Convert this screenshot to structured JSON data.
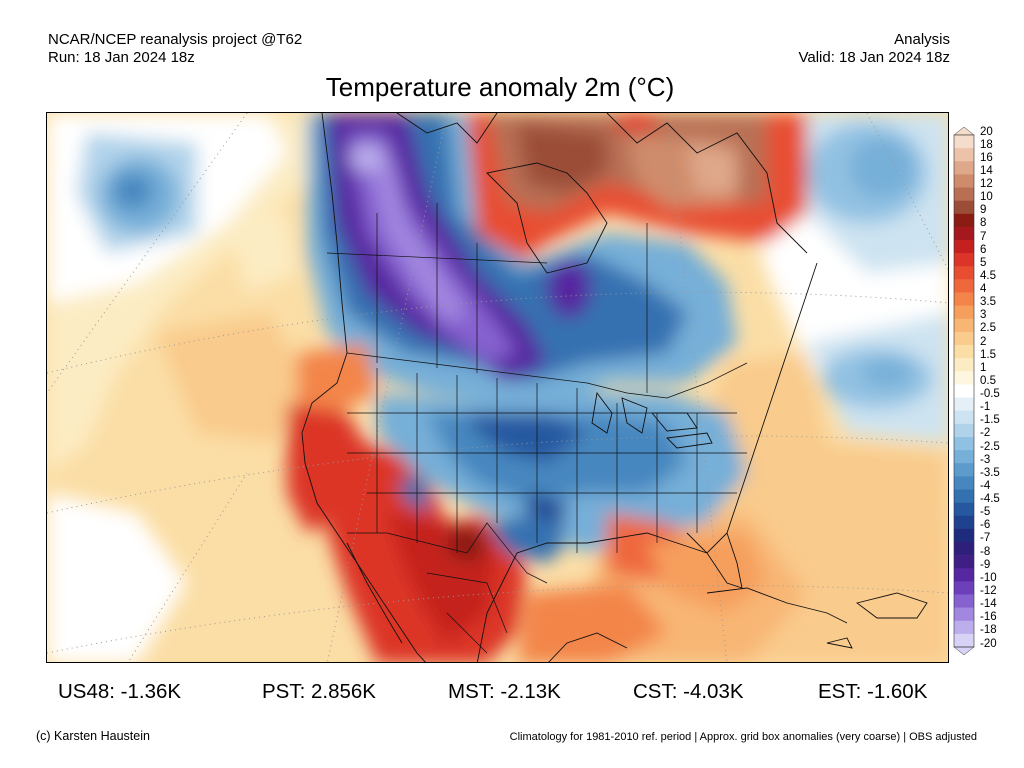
{
  "header": {
    "source": "NCAR/NCEP reanalysis project @T62",
    "run": "Run: 18 Jan 2024 18z",
    "product": "Analysis",
    "valid": "Valid: 18 Jan 2024 18z"
  },
  "title": "Temperature anomaly 2m (°C)",
  "colorbar": {
    "labels": [
      "20",
      "18",
      "16",
      "14",
      "12",
      "10",
      "9",
      "8",
      "7",
      "6",
      "5",
      "4.5",
      "4",
      "3.5",
      "3",
      "2.5",
      "2",
      "1.5",
      "1",
      "0.5",
      "-0.5",
      "-1",
      "-1.5",
      "-2",
      "-2.5",
      "-3",
      "-3.5",
      "-4",
      "-4.5",
      "-5",
      "-6",
      "-7",
      "-8",
      "-9",
      "-10",
      "-12",
      "-14",
      "-16",
      "-18",
      "-20"
    ],
    "colors": [
      "#f6dccb",
      "#ecc2a8",
      "#e0a88a",
      "#cf8c6c",
      "#b86f54",
      "#9b4d38",
      "#8a1c14",
      "#a5181d",
      "#c4201f",
      "#dc3428",
      "#e84d31",
      "#ef683c",
      "#f3854a",
      "#f69f5d",
      "#f8b674",
      "#f9cb8c",
      "#fbdea6",
      "#fcecc3",
      "#fef6de",
      "#ffffff",
      "#e4eff8",
      "#cde3f1",
      "#b1d3ea",
      "#91c1e2",
      "#76afd8",
      "#5c9bcc",
      "#4687bf",
      "#3471b1",
      "#2658a0",
      "#1f428f",
      "#1f2c7e",
      "#2d1f7a",
      "#3f1f86",
      "#5627a0",
      "#6e3fbb",
      "#8662d0",
      "#a287e0",
      "#bcaeec",
      "#d8d2f6"
    ]
  },
  "regions": [
    {
      "label": "US48: -1.36K"
    },
    {
      "label": "PST: 2.856K"
    },
    {
      "label": "MST: -2.13K"
    },
    {
      "label": "CST: -4.03K"
    },
    {
      "label": "EST: -1.60K"
    }
  ],
  "footer": {
    "credit": "(c) Karsten Haustein",
    "note": "Climatology for 1981-2010 ref. period | Approx. grid box anomalies (very coarse) | OBS adjusted"
  }
}
